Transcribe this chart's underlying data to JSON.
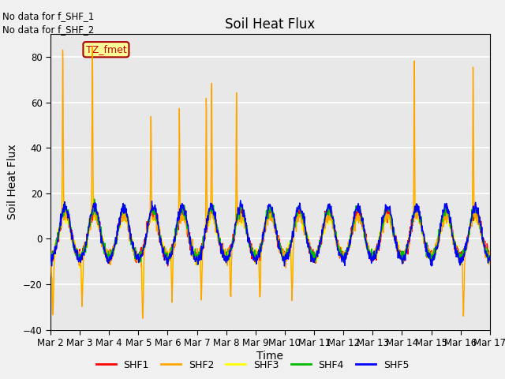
{
  "title": "Soil Heat Flux",
  "ylabel": "Soil Heat Flux",
  "xlabel": "Time",
  "ylim": [
    -40,
    90
  ],
  "yticks": [
    -40,
    -20,
    0,
    20,
    40,
    60,
    80
  ],
  "xtick_labels": [
    "Mar 2",
    "Mar 3",
    "Mar 4",
    "Mar 5",
    "Mar 6",
    "Mar 7",
    "Mar 8",
    "Mar 9",
    "Mar 10",
    "Mar 11",
    "Mar 12",
    "Mar 13",
    "Mar 14",
    "Mar 15",
    "Mar 16",
    "Mar 17"
  ],
  "colors": {
    "SHF1": "#ff0000",
    "SHF2": "#ffa500",
    "SHF3": "#ffff00",
    "SHF4": "#00bb00",
    "SHF5": "#0000ff"
  },
  "no_data_text": [
    "No data for f_SHF_1",
    "No data for f_SHF_2"
  ],
  "annotation_label": "TZ_fmet",
  "plot_bg": "#e8e8e8",
  "grid_color": "#ffffff",
  "fig_bg": "#f0f0f0",
  "title_fontsize": 12,
  "axis_label_fontsize": 10,
  "tick_fontsize": 8.5,
  "linewidth": 1.0
}
